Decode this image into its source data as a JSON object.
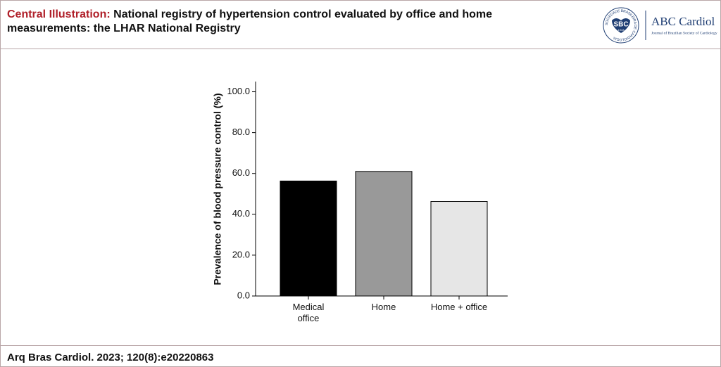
{
  "header": {
    "lead": "Central Illustration:",
    "title": "National registry of hypertension control evaluated by office and home measurements: the LHAR National Registry"
  },
  "logo": {
    "ring": "SOCIEDADE BRASILEIRA DE CARDIOLOGIA",
    "badge": "SBC",
    "year": "1943",
    "name": "ABC Cardiol",
    "tagline": "Journal of Brazilian Society of Cardiology"
  },
  "chart_data": {
    "type": "bar",
    "y_label": "Prevalence of blood pressure control (%)",
    "categories": [
      "Medical office",
      "Home",
      "Home + office"
    ],
    "values": [
      56.3,
      61.0,
      46.3
    ],
    "colors": [
      "#000000",
      "#999999",
      "#e6e6e6"
    ],
    "ylim": [
      0,
      105
    ],
    "yticks": [
      {
        "value": 0,
        "label": "0.0"
      },
      {
        "value": 20,
        "label": "20.0"
      },
      {
        "value": 40,
        "label": "40.0"
      },
      {
        "value": 60,
        "label": "60.0"
      },
      {
        "value": 80,
        "label": "80.0"
      },
      {
        "value": 100,
        "label": "100.0"
      }
    ],
    "grid": false
  },
  "footer": {
    "citation": "Arq Bras Cardiol. 2023; 120(8):e20220863"
  }
}
